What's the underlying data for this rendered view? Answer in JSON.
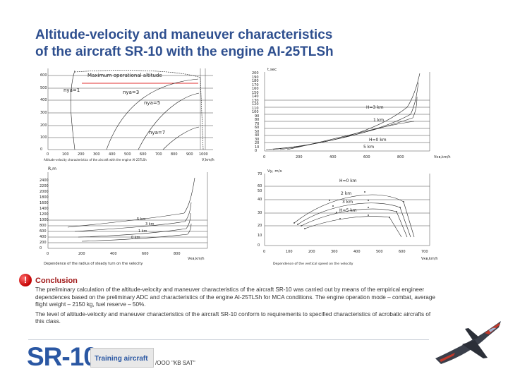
{
  "header": {
    "title_line1": "Altitude-velocity and maneuver characteristics",
    "title_line2": "of the aircraft SR-10 with the engine AI-25TLSh"
  },
  "chart_data": [
    {
      "type": "line",
      "ylabel": "",
      "xlabel": "V,km/h",
      "annotation": "Maximum operational altitude",
      "curve_labels": [
        "nya=1",
        "nya=3",
        "nya=5",
        "nya=7"
      ],
      "x_ticks": [
        "0",
        "100",
        "200",
        "300",
        "400",
        "500",
        "600",
        "700",
        "800",
        "900",
        "1000"
      ],
      "y_ticks": [
        "0",
        "100",
        "200",
        "300",
        "400",
        "500",
        "600"
      ],
      "xlim": [
        0,
        1000
      ],
      "ylim": [
        0,
        700
      ],
      "caption": "Altitude-velocity characteristics of the aircraft with the engine AI-25TLSh"
    },
    {
      "type": "line",
      "ylabel": "t,sec",
      "xlabel": "Vкв,km/h",
      "curve_labels": [
        "H=3 km",
        "1 km",
        "H=0 km",
        "5 km"
      ],
      "x_ticks": [
        "0",
        "200",
        "400",
        "600",
        "800"
      ],
      "y_ticks": [
        "0",
        "10",
        "20",
        "30",
        "40",
        "50",
        "60",
        "70",
        "80",
        "90",
        "100",
        "110",
        "120",
        "130",
        "140",
        "150",
        "160",
        "170",
        "180",
        "190",
        "200"
      ],
      "xlim": [
        0,
        1000
      ],
      "ylim": [
        0,
        200
      ]
    },
    {
      "type": "line",
      "ylabel": "R,m",
      "xlabel": "Vкв,km/h",
      "curve_labels": [
        "5 km",
        "3 km",
        "1 km",
        "0 km"
      ],
      "x_ticks": [
        "0",
        "200",
        "400",
        "600",
        "800"
      ],
      "y_ticks": [
        "0",
        "200",
        "400",
        "600",
        "800",
        "1000",
        "1200",
        "1400",
        "1600",
        "1800",
        "2000",
        "2200",
        "2400"
      ],
      "xlim": [
        0,
        1000
      ],
      "ylim": [
        0,
        2600
      ],
      "caption": "Dependence of the radius of steady turn on the velocity"
    },
    {
      "type": "line",
      "ylabel": "Vy, m/s",
      "xlabel": "Vкв,km/h",
      "curve_labels": [
        "H=0 km",
        "2 km",
        "3 km",
        "H=5 km"
      ],
      "x_ticks": [
        "0",
        "100",
        "200",
        "300",
        "400",
        "500",
        "600",
        "700"
      ],
      "y_ticks": [
        "0",
        "10",
        "20",
        "30",
        "40",
        "50",
        "60",
        "70"
      ],
      "xlim": [
        0,
        700
      ],
      "ylim": [
        0,
        70
      ],
      "caption": "Dependence of the vertical speed on the velocity"
    }
  ],
  "conclusion": {
    "heading": "Conclusion",
    "paragraph1": "The preliminary calculation of the altitude-velocity and maneuver characteristics of the aircraft SR-10 was carried out by means of the empirical engineer dependences based on the preliminary ADC and characteristics of the engine AI-25TLSh for MCA conditions. The engine operation mode – combat, average flight weight – 2150 kg, fuel reserve – 50%.",
    "paragraph2": "The level of altitude-velocity and maneuver characteristics of the aircraft SR-10 conform to requirements to specified characteristics of acrobatic aircrafts of this class."
  },
  "footer": {
    "logo": "SR-10",
    "training_label": "Training aircraft",
    "company": "/OOO \"KB SAT\""
  },
  "colors": {
    "title": "#2e4f8f",
    "logo": "#2a57a3",
    "conclusion_heading": "#a01818",
    "alert_icon": "#d00000",
    "highlight_line": "#e03030"
  }
}
